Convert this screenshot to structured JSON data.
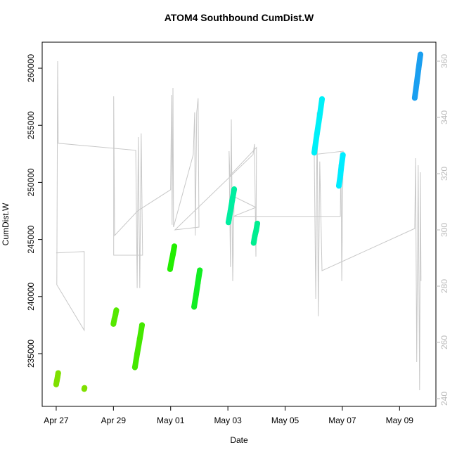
{
  "chart_data": {
    "type": "scatter",
    "title": "ATOM4 Southbound CumDist.W",
    "xlabel": "Date",
    "ylabel": "CumDist.W",
    "xlim": [
      -0.49,
      13.27
    ],
    "xticks": [
      {
        "value": 0,
        "label": "Apr 27"
      },
      {
        "value": 2,
        "label": "Apr 29"
      },
      {
        "value": 4,
        "label": "May 01"
      },
      {
        "value": 6,
        "label": "May 03"
      },
      {
        "value": 8,
        "label": "May 05"
      },
      {
        "value": 10,
        "label": "May 07"
      },
      {
        "value": 12,
        "label": "May 09"
      }
    ],
    "ylim": [
      230380,
      262280
    ],
    "yticks": [
      235000,
      240000,
      245000,
      250000,
      255000,
      260000
    ],
    "y2lim": [
      237.25,
      366.75
    ],
    "y2ticks": [
      240,
      260,
      280,
      300,
      320,
      340,
      360
    ],
    "series": [
      {
        "type": "line",
        "axis": "y2",
        "color": "#c8c8c8",
        "x": [
          0,
          0.98,
          0.98,
          0.02,
          0.05,
          0.07,
          2.78,
          2.83,
          2.87,
          2.92,
          2.97,
          3.02,
          2.01,
          2.01,
          2.04,
          2.85,
          4.0,
          4.03,
          4.05,
          4.08,
          4.1,
          4.79,
          4.84,
          4.86,
          4.91,
          4.96,
          4.99,
          4.15,
          6.88,
          6.93,
          6.98,
          7.0,
          6.07,
          6.04,
          6.09,
          6.12,
          6.17,
          6.22,
          6.98,
          6.19,
          9.93,
          9.95,
          9.98,
          10.03,
          9.02,
          9.07,
          9.12,
          9.16,
          9.21,
          9.29,
          12.53,
          12.56,
          12.6,
          12.65,
          12.7,
          12.73,
          12.75
        ],
        "values": [
          291.8,
          292.3,
          264.3,
          280.5,
          360,
          330.8,
          328.3,
          279.3,
          333,
          279.3,
          334.3,
          291,
          291,
          347.5,
          298,
          306.8,
          314.3,
          348,
          301.8,
          350.5,
          301,
          326.8,
          341.8,
          298,
          341.8,
          346.8,
          301,
          300,
          326.8,
          330.5,
          290.5,
          329.3,
          319.3,
          328,
          286.8,
          339.3,
          281.8,
          311.8,
          308,
          304.8,
          304.8,
          328,
          281.8,
          328,
          326.8,
          275.5,
          341.8,
          269.3,
          324.3,
          285.5,
          300.5,
          325.5,
          253,
          323,
          243,
          320.5,
          281.8
        ]
      },
      {
        "color": "#7fe000",
        "x": [
          0,
          0.02,
          0.05,
          0.07
        ],
        "values": [
          232300,
          232600,
          233000,
          233300
        ]
      },
      {
        "color": "#7fe000",
        "x": [
          0.98,
          0.99
        ],
        "values": [
          231900,
          232000
        ]
      },
      {
        "color": "#55e800",
        "x": [
          2.0,
          2.03,
          2.07,
          2.1
        ],
        "values": [
          237600,
          238000,
          238400,
          238800
        ]
      },
      {
        "color": "#44e800",
        "x": [
          2.75,
          2.83,
          2.92,
          3.0
        ],
        "values": [
          233800,
          235000,
          236300,
          237500
        ]
      },
      {
        "color": "#22ee00",
        "x": [
          3.98,
          4.03,
          4.08,
          4.13
        ],
        "values": [
          242400,
          243100,
          243700,
          244400
        ]
      },
      {
        "color": "#11ee22",
        "x": [
          4.82,
          4.89,
          4.95,
          5.02
        ],
        "values": [
          239100,
          240200,
          241200,
          242300
        ]
      },
      {
        "color": "#00eea0",
        "x": [
          6.02,
          6.09,
          6.15,
          6.22
        ],
        "values": [
          246500,
          247500,
          248400,
          249400
        ]
      },
      {
        "color": "#00ee90",
        "x": [
          6.9,
          6.94,
          6.99,
          7.03
        ],
        "values": [
          244700,
          245300,
          245800,
          246400
        ]
      },
      {
        "color": "#00f0f8",
        "x": [
          9.02,
          9.11,
          9.2,
          9.29
        ],
        "values": [
          252600,
          254200,
          255700,
          257300
        ]
      },
      {
        "color": "#00ecff",
        "x": [
          9.88,
          9.93,
          9.97,
          10.02
        ],
        "values": [
          249700,
          250600,
          251500,
          252400
        ]
      },
      {
        "color": "#1a9ff0",
        "x": [
          12.53,
          12.6,
          12.66,
          12.73
        ],
        "values": [
          257400,
          258700,
          259900,
          261200
        ]
      }
    ]
  }
}
